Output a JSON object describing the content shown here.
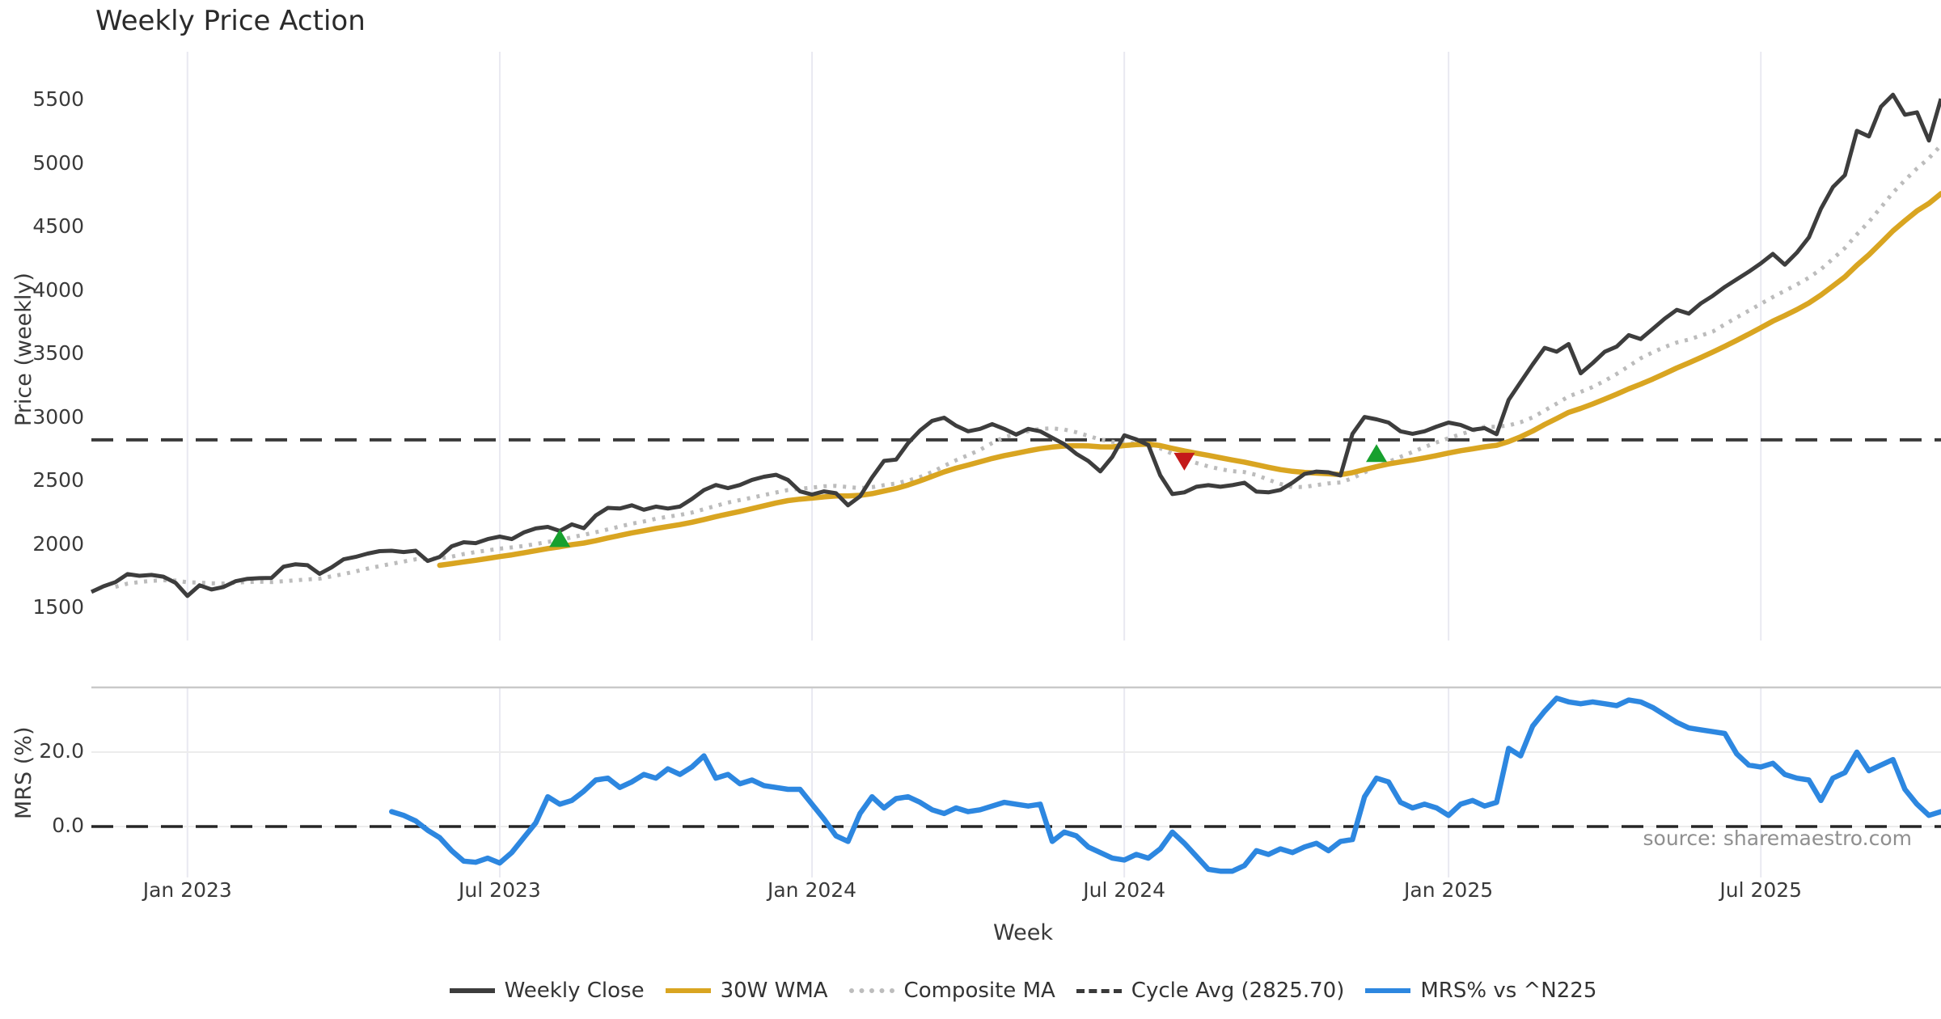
{
  "figure": {
    "title": "Weekly Price Action",
    "xlabel": "Week",
    "source_note": "source: sharemaestro.com"
  },
  "colors": {
    "close": "#3d3d3d",
    "wma": "#d9a521",
    "composite": "#bcbcbc",
    "cycle_avg": "#3a3a3a",
    "mrs": "#2d87e0",
    "buy_marker": "#17a02e",
    "sell_marker": "#c41a1a",
    "gridline": "#e9e9f1",
    "spine": "#c9c9c9",
    "zero_gridline": "#ececec",
    "source_text": "#8f8f8f"
  },
  "legend": [
    {
      "label": "Weekly Close",
      "style": "solid",
      "color": "#3d3d3d"
    },
    {
      "label": "30W WMA",
      "style": "solid",
      "color": "#d9a521"
    },
    {
      "label": "Composite MA",
      "style": "dotted",
      "color": "#bcbcbc"
    },
    {
      "label": "Cycle Avg (2825.70)",
      "style": "dashed",
      "color": "#3a3a3a"
    },
    {
      "label": "MRS% vs ^N225",
      "style": "solid",
      "color": "#2d87e0"
    }
  ],
  "chart_data": [
    {
      "type": "line",
      "panel": "price",
      "ylabel": "Price (weekly)",
      "weeks": 155,
      "ylim": [
        1260,
        5880
      ],
      "y_ticks": [
        1500,
        2000,
        2500,
        3000,
        3500,
        4000,
        4500,
        5000,
        5500
      ],
      "x_ticks": [
        {
          "label": "Jan 2023",
          "week": 8
        },
        {
          "label": "Jul 2023",
          "week": 34
        },
        {
          "label": "Jan 2024",
          "week": 60
        },
        {
          "label": "Jul 2024",
          "week": 86
        },
        {
          "label": "Jan 2025",
          "week": 113
        },
        {
          "label": "Jul 2025",
          "week": 139
        }
      ],
      "cycle_avg": 2825.7,
      "series": [
        {
          "name": "Weekly Close",
          "values": [
            1628,
            1672,
            1705,
            1768,
            1755,
            1762,
            1748,
            1700,
            1596,
            1680,
            1647,
            1667,
            1712,
            1731,
            1736,
            1738,
            1827,
            1846,
            1838,
            1770,
            1821,
            1885,
            1904,
            1930,
            1949,
            1952,
            1942,
            1952,
            1872,
            1904,
            1987,
            2019,
            2012,
            2044,
            2064,
            2044,
            2096,
            2128,
            2140,
            2108,
            2160,
            2130,
            2230,
            2290,
            2285,
            2310,
            2275,
            2300,
            2285,
            2300,
            2360,
            2430,
            2470,
            2445,
            2470,
            2510,
            2535,
            2550,
            2510,
            2420,
            2395,
            2420,
            2405,
            2310,
            2380,
            2530,
            2660,
            2670,
            2800,
            2900,
            2975,
            3000,
            2937,
            2893,
            2912,
            2950,
            2912,
            2867,
            2912,
            2893,
            2842,
            2792,
            2716,
            2659,
            2577,
            2691,
            2861,
            2829,
            2785,
            2545,
            2399,
            2412,
            2456,
            2469,
            2456,
            2469,
            2488,
            2418,
            2412,
            2431,
            2488,
            2557,
            2576,
            2570,
            2545,
            2873,
            3006,
            2987,
            2962,
            2893,
            2873,
            2893,
            2930,
            2962,
            2943,
            2905,
            2918,
            2870,
            3140,
            3280,
            3420,
            3550,
            3520,
            3580,
            3350,
            3430,
            3520,
            3560,
            3650,
            3620,
            3700,
            3780,
            3850,
            3820,
            3900,
            3960,
            4030,
            4090,
            4150,
            4215,
            4290,
            4205,
            4300,
            4420,
            4645,
            4816,
            4911,
            5259,
            5215,
            5449,
            5544,
            5386,
            5405,
            5183,
            5512
          ]
        },
        {
          "name": "30W WMA",
          "derivation": "weighted_ma_of_weekly_close",
          "window": 30,
          "start_week": 29
        },
        {
          "name": "Composite MA",
          "derivation": "sma_of_weekly_close",
          "window": 12,
          "start_week": 2
        }
      ],
      "markers": [
        {
          "shape": "triangle-up",
          "meaning": "buy-signal",
          "week": 39,
          "price": 2045
        },
        {
          "shape": "triangle-down",
          "meaning": "sell-signal",
          "week": 91,
          "price": 2660
        },
        {
          "shape": "triangle-up",
          "meaning": "buy-signal",
          "week": 107,
          "price": 2715
        }
      ]
    },
    {
      "type": "line",
      "panel": "mrs",
      "ylabel": "MRS (%)",
      "y_ticks": [
        0.0,
        20.0
      ],
      "zero_line": 0.0,
      "series": [
        {
          "name": "MRS% vs ^N225",
          "start_week": 25,
          "values": [
            4,
            3,
            1.5,
            -1,
            -3,
            -6.5,
            -9.3,
            -9.6,
            -8.5,
            -9.8,
            -7,
            -3,
            1,
            8,
            6,
            7,
            9.5,
            12.5,
            13,
            10.5,
            12,
            14,
            13,
            15.5,
            14,
            16,
            19,
            13,
            14,
            11.5,
            12.5,
            11,
            10.5,
            10,
            10,
            6,
            2,
            -2.5,
            -4,
            3.5,
            8,
            5,
            7.5,
            8,
            6.5,
            4.5,
            3.5,
            5,
            4,
            4.5,
            5.5,
            6.5,
            6,
            5.5,
            6,
            -4,
            -1.5,
            -2.5,
            -5.5,
            -7,
            -8.5,
            -9,
            -7.5,
            -8.5,
            -6,
            -1.5,
            -4.5,
            -8,
            -11.5,
            -12,
            -12,
            -10.5,
            -6.5,
            -7.5,
            -6,
            -7,
            -5.5,
            -4.5,
            -6.5,
            -4,
            -3.5,
            8,
            13,
            12,
            6.5,
            5,
            6,
            5,
            3,
            6,
            7,
            5.5,
            6.5,
            21,
            19,
            27,
            31,
            34.5,
            33.5,
            33,
            33.5,
            33,
            32.5,
            34,
            33.5,
            32,
            30,
            28,
            26.5,
            26,
            25.5,
            25,
            19.5,
            16.5,
            16,
            17,
            14,
            13,
            12.5,
            7,
            13,
            14.5,
            20,
            15,
            16.5,
            18,
            10,
            6,
            3,
            4
          ]
        }
      ]
    }
  ]
}
